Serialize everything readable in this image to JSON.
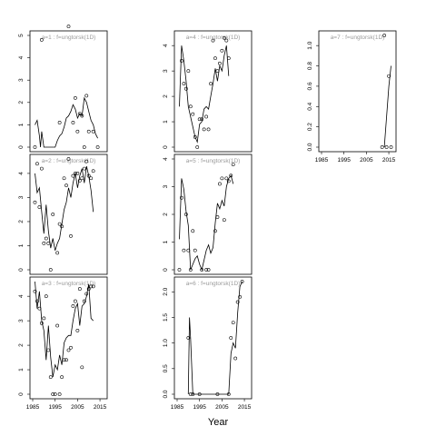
{
  "figure": {
    "xlabel": "Year"
  },
  "chart_data": [
    {
      "type": "line",
      "title": "a=1 : f=ungtorsk(1D)",
      "xlim": [
        1985,
        2017
      ],
      "ylim": [
        0,
        5
      ],
      "yticks": [
        0,
        1,
        2,
        3,
        4,
        5
      ],
      "xticks": [],
      "points": [
        [
          1986,
          0
        ],
        [
          1989,
          4.8
        ],
        [
          1997,
          1.1
        ],
        [
          2001,
          5.4
        ],
        [
          2003,
          1.1
        ],
        [
          2004,
          2.2
        ],
        [
          2005,
          0.7
        ],
        [
          2006,
          1.5
        ],
        [
          2007,
          1.4
        ],
        [
          2008,
          0
        ],
        [
          2009,
          2.3
        ],
        [
          2010,
          0.7
        ],
        [
          2012,
          0.7
        ],
        [
          2014,
          0
        ]
      ],
      "line": [
        [
          1986,
          1.0
        ],
        [
          1987,
          1.2
        ],
        [
          1988,
          0.5
        ],
        [
          1988.5,
          0
        ],
        [
          1989,
          0.7
        ],
        [
          1990,
          0
        ],
        [
          1995,
          0
        ],
        [
          1996,
          0.3
        ],
        [
          1997,
          0.5
        ],
        [
          1998,
          0.6
        ],
        [
          1999,
          0.9
        ],
        [
          2000,
          1.3
        ],
        [
          2001,
          1.4
        ],
        [
          2002,
          1.6
        ],
        [
          2003,
          1.9
        ],
        [
          2004,
          1.7
        ],
        [
          2005,
          1.3
        ],
        [
          2006,
          1.5
        ],
        [
          2007,
          1.4
        ],
        [
          2008,
          2.2
        ],
        [
          2009,
          2.0
        ],
        [
          2010,
          1.6
        ],
        [
          2011,
          1.2
        ],
        [
          2012,
          1.0
        ],
        [
          2013,
          0.6
        ],
        [
          2014,
          0.4
        ]
      ]
    },
    {
      "type": "line",
      "title": "a=2 : f=ungtorsk(1D)",
      "xlim": [
        1985,
        2017
      ],
      "ylim": [
        0,
        4.6
      ],
      "yticks": [
        0,
        1,
        2,
        3,
        4
      ],
      "xticks": [],
      "points": [
        [
          1986,
          2.8
        ],
        [
          1987,
          4.4
        ],
        [
          1988,
          2.6
        ],
        [
          1989,
          4.2
        ],
        [
          1990,
          1.1
        ],
        [
          1991,
          1.3
        ],
        [
          1992,
          1.1
        ],
        [
          1993,
          0
        ],
        [
          1994,
          2.3
        ],
        [
          1996,
          0.7
        ],
        [
          1997,
          1.9
        ],
        [
          1998,
          1.8
        ],
        [
          1999,
          3.8
        ],
        [
          2000,
          3.5
        ],
        [
          2001,
          4.6
        ],
        [
          2002,
          1.4
        ],
        [
          2003,
          3.9
        ],
        [
          2004,
          4.0
        ],
        [
          2005,
          4.0
        ],
        [
          2006,
          3.7
        ],
        [
          2007,
          3.8
        ],
        [
          2008,
          4.2
        ],
        [
          2009,
          4.5
        ],
        [
          2010,
          3.9
        ],
        [
          2011,
          3.8
        ],
        [
          2012,
          4.1
        ]
      ],
      "line": [
        [
          1986,
          4.0
        ],
        [
          1987,
          3.2
        ],
        [
          1988,
          3.4
        ],
        [
          1989,
          2.4
        ],
        [
          1990,
          1.5
        ],
        [
          1991,
          2.7
        ],
        [
          1992,
          1.6
        ],
        [
          1993,
          0.9
        ],
        [
          1994,
          1.3
        ],
        [
          1995,
          0.8
        ],
        [
          1996,
          1.1
        ],
        [
          1997,
          1.3
        ],
        [
          1998,
          1.9
        ],
        [
          1999,
          2.5
        ],
        [
          2000,
          2.8
        ],
        [
          2001,
          3.4
        ],
        [
          2002,
          3.0
        ],
        [
          2003,
          3.6
        ],
        [
          2004,
          4.0
        ],
        [
          2005,
          3.4
        ],
        [
          2006,
          3.9
        ],
        [
          2007,
          4.2
        ],
        [
          2008,
          3.6
        ],
        [
          2009,
          4.3
        ],
        [
          2010,
          3.9
        ],
        [
          2011,
          3.3
        ],
        [
          2012,
          2.4
        ]
      ]
    },
    {
      "type": "line",
      "title": "a=3 : f=ungtorsk(1D)",
      "xlim": [
        1985,
        2017
      ],
      "ylim": [
        0,
        4.6
      ],
      "yticks": [
        0,
        1,
        2,
        3,
        4
      ],
      "xticks": [
        1985,
        1995,
        2005,
        2015
      ],
      "points": [
        [
          1986,
          4.2
        ],
        [
          1987,
          3.8
        ],
        [
          1988,
          3.5
        ],
        [
          1989,
          2.9
        ],
        [
          1990,
          3.1
        ],
        [
          1991,
          4.0
        ],
        [
          1992,
          1.8
        ],
        [
          1993,
          0.7
        ],
        [
          1994,
          0
        ],
        [
          1995,
          0
        ],
        [
          1996,
          2.8
        ],
        [
          1997,
          0
        ],
        [
          1998,
          0.7
        ],
        [
          1999,
          1.4
        ],
        [
          2000,
          1.4
        ],
        [
          2001,
          1.8
        ],
        [
          2002,
          1.9
        ],
        [
          2003,
          3.6
        ],
        [
          2004,
          3.8
        ],
        [
          2005,
          2.6
        ],
        [
          2006,
          4.3
        ],
        [
          2007,
          1.1
        ],
        [
          2008,
          3.8
        ],
        [
          2009,
          4.1
        ],
        [
          2010,
          4.3
        ],
        [
          2011,
          4.4
        ],
        [
          2012,
          4.4
        ]
      ],
      "line": [
        [
          1986,
          4.6
        ],
        [
          1987,
          3.5
        ],
        [
          1988,
          4.2
        ],
        [
          1989,
          3.0
        ],
        [
          1990,
          2.6
        ],
        [
          1991,
          1.4
        ],
        [
          1992,
          2.8
        ],
        [
          1993,
          1.5
        ],
        [
          1994,
          0.7
        ],
        [
          1995,
          1.2
        ],
        [
          1996,
          1.0
        ],
        [
          1997,
          1.6
        ],
        [
          1998,
          1.2
        ],
        [
          1999,
          2.1
        ],
        [
          2000,
          2.3
        ],
        [
          2001,
          2.4
        ],
        [
          2002,
          2.4
        ],
        [
          2003,
          3.0
        ],
        [
          2004,
          3.5
        ],
        [
          2005,
          3.7
        ],
        [
          2006,
          2.8
        ],
        [
          2007,
          3.6
        ],
        [
          2008,
          3.7
        ],
        [
          2009,
          4.0
        ],
        [
          2010,
          4.5
        ],
        [
          2011,
          3.1
        ],
        [
          2012,
          3.0
        ]
      ]
    },
    {
      "type": "line",
      "title": "a=4 : f=ungtorsk(1D)",
      "xlim": [
        1985,
        2017
      ],
      "ylim": [
        0,
        4.4
      ],
      "yticks": [
        0,
        1,
        2,
        3,
        4
      ],
      "xticks": [],
      "points": [
        [
          1987,
          3.4
        ],
        [
          1988,
          2.5
        ],
        [
          1989,
          2.3
        ],
        [
          1990,
          3.0
        ],
        [
          1991,
          1.6
        ],
        [
          1992,
          1.3
        ],
        [
          1993,
          0.4
        ],
        [
          1994,
          0
        ],
        [
          1995,
          1.1
        ],
        [
          1996,
          1.1
        ],
        [
          1997,
          0.7
        ],
        [
          1998,
          1.2
        ],
        [
          1999,
          0.7
        ],
        [
          2000,
          2.5
        ],
        [
          2001,
          4.2
        ],
        [
          2002,
          3.5
        ],
        [
          2003,
          3.0
        ],
        [
          2004,
          3.3
        ],
        [
          2005,
          3.8
        ],
        [
          2006,
          4.3
        ],
        [
          2007,
          4.2
        ],
        [
          2008,
          3.5
        ]
      ],
      "line": [
        [
          1986,
          1.6
        ],
        [
          1987,
          4.0
        ],
        [
          1988,
          3.4
        ],
        [
          1989,
          2.6
        ],
        [
          1990,
          1.6
        ],
        [
          1991,
          1.2
        ],
        [
          1992,
          0.8
        ],
        [
          1993,
          0.4
        ],
        [
          1994,
          0.2
        ],
        [
          1995,
          0.9
        ],
        [
          1996,
          1.0
        ],
        [
          1997,
          1.5
        ],
        [
          1998,
          1.6
        ],
        [
          1999,
          1.5
        ],
        [
          2000,
          2.0
        ],
        [
          2001,
          2.5
        ],
        [
          2002,
          3.1
        ],
        [
          2003,
          2.6
        ],
        [
          2004,
          3.2
        ],
        [
          2005,
          3.0
        ],
        [
          2006,
          3.6
        ],
        [
          2007,
          4.0
        ],
        [
          2008,
          2.8
        ]
      ]
    },
    {
      "type": "line",
      "title": "a=5 : f=ungtorsk(1D)",
      "xlim": [
        1985,
        2017
      ],
      "ylim": [
        0,
        4.0
      ],
      "yticks": [
        0,
        1,
        2,
        3,
        4
      ],
      "xticks": [],
      "points": [
        [
          1986,
          0
        ],
        [
          1987,
          2.6
        ],
        [
          1988,
          0.7
        ],
        [
          1989,
          2.0
        ],
        [
          1990,
          0.7
        ],
        [
          1991,
          0
        ],
        [
          1992,
          1.4
        ],
        [
          1993,
          0.7
        ],
        [
          1996,
          0
        ],
        [
          1998,
          0
        ],
        [
          1999,
          0
        ],
        [
          2002,
          1.4
        ],
        [
          2003,
          1.9
        ],
        [
          2004,
          3.1
        ],
        [
          2005,
          3.3
        ],
        [
          2006,
          1.8
        ],
        [
          2007,
          3.3
        ],
        [
          2008,
          3.2
        ],
        [
          2009,
          3.4
        ],
        [
          2010,
          3.8
        ]
      ],
      "line": [
        [
          1986,
          1.1
        ],
        [
          1987,
          3.3
        ],
        [
          1988,
          2.9
        ],
        [
          1989,
          2.1
        ],
        [
          1990,
          1.6
        ],
        [
          1991,
          0
        ],
        [
          1993,
          0.4
        ],
        [
          1994,
          0.5
        ],
        [
          1995,
          0.2
        ],
        [
          1996,
          0
        ],
        [
          1998,
          0.7
        ],
        [
          1999,
          0.9
        ],
        [
          2000,
          0.6
        ],
        [
          2001,
          0.8
        ],
        [
          2002,
          1.7
        ],
        [
          2003,
          2.4
        ],
        [
          2004,
          2.2
        ],
        [
          2005,
          2.5
        ],
        [
          2006,
          2.3
        ],
        [
          2007,
          3.0
        ],
        [
          2008,
          3.3
        ],
        [
          2009,
          3.4
        ],
        [
          2010,
          3.1
        ]
      ]
    },
    {
      "type": "line",
      "title": "a=6 : f=ungtorsk(1D)",
      "xlim": [
        1985,
        2017
      ],
      "ylim": [
        0,
        2.2
      ],
      "yticks": [
        0,
        0.5,
        1.0,
        1.5,
        2.0
      ],
      "xticks": [
        1985,
        1995,
        2005,
        2015
      ],
      "points": [
        [
          1990,
          1.1
        ],
        [
          1991,
          0
        ],
        [
          1992,
          0
        ],
        [
          1995,
          0
        ],
        [
          2003,
          0
        ],
        [
          2008,
          0
        ],
        [
          2009,
          1.1
        ],
        [
          2010,
          1.4
        ],
        [
          2011,
          0.7
        ],
        [
          2012,
          1.8
        ],
        [
          2013,
          1.9
        ],
        [
          2014,
          2.2
        ]
      ],
      "line": [
        [
          1990,
          0
        ],
        [
          1990.5,
          1.5
        ],
        [
          1991,
          1.1
        ],
        [
          1992,
          0
        ],
        [
          2008,
          0
        ],
        [
          2009,
          0.8
        ],
        [
          2010,
          1.0
        ],
        [
          2011,
          0.9
        ],
        [
          2012,
          1.6
        ],
        [
          2013,
          2.1
        ],
        [
          2014,
          2.2
        ]
      ]
    },
    {
      "type": "line",
      "title": "a=7 : f=ungtorsk(1D)",
      "xlim": [
        1985,
        2017
      ],
      "ylim": [
        0,
        1.1
      ],
      "yticks": [
        0,
        0.2,
        0.4,
        0.6,
        0.8,
        1.0
      ],
      "xticks": [
        1985,
        1995,
        2005,
        2015
      ],
      "points": [
        [
          2012,
          0
        ],
        [
          2013,
          1.1
        ],
        [
          2014,
          0
        ],
        [
          2015,
          0.7
        ],
        [
          2016,
          0
        ]
      ],
      "line": [
        [
          2013,
          0
        ],
        [
          2014,
          0.3
        ],
        [
          2015,
          0.6
        ],
        [
          2016,
          0.8
        ]
      ]
    }
  ]
}
